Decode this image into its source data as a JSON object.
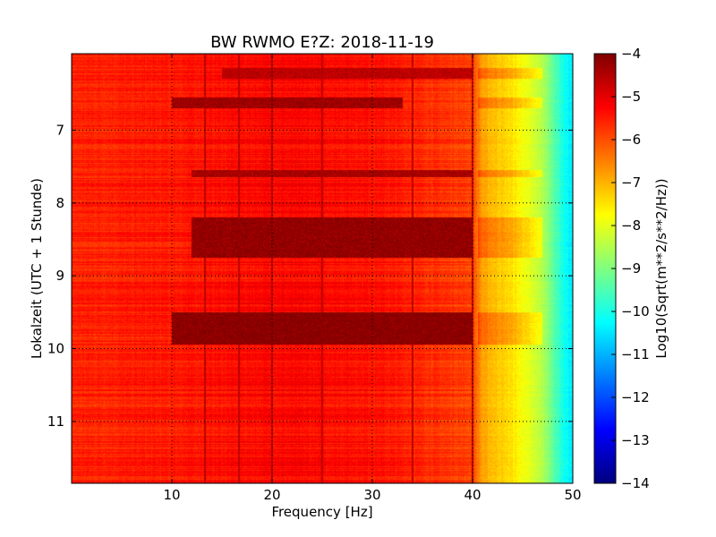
{
  "chart_data": {
    "type": "heatmap",
    "title": "BW RWMO E?Z: 2018-11-19",
    "xlabel": "Frequency [Hz]",
    "ylabel": "Lokalzeit (UTC + 1 Stunde)",
    "xlim": [
      0,
      50
    ],
    "ylim": [
      5.95,
      11.85
    ],
    "y_inverted": true,
    "x_ticks": [
      10,
      20,
      30,
      40,
      50
    ],
    "y_ticks": [
      7,
      8,
      9,
      10,
      11
    ],
    "grid": true,
    "colormap": "jet",
    "colorbar": {
      "label": "Log10(Sqrt(m**2/s**2/Hz))",
      "range": [
        -14,
        -4
      ],
      "ticks": [
        -4,
        -5,
        -6,
        -7,
        -8,
        -9,
        -10,
        -11,
        -12,
        -13,
        -14
      ]
    },
    "description_of_values": {
      "frequency_profile_hz_to_log10": [
        [
          0,
          -5.6
        ],
        [
          10,
          -5.5
        ],
        [
          20,
          -5.3
        ],
        [
          30,
          -5.4
        ],
        [
          40,
          -5.9
        ],
        [
          41,
          -6.9
        ],
        [
          44,
          -7.5
        ],
        [
          47,
          -8.5
        ],
        [
          49,
          -10.0
        ],
        [
          50,
          -10.5
        ]
      ],
      "high_energy_time_bands": [
        {
          "t_start": 6.15,
          "t_end": 6.3,
          "f_start": 15,
          "f_end": 40,
          "level": -4.6
        },
        {
          "t_start": 6.55,
          "t_end": 6.7,
          "f_start": 10,
          "f_end": 33,
          "level": -4.3
        },
        {
          "t_start": 7.55,
          "t_end": 7.65,
          "f_start": 12,
          "f_end": 40,
          "level": -4.4
        },
        {
          "t_start": 8.2,
          "t_end": 8.75,
          "f_start": 12,
          "f_end": 40,
          "level": -4.2
        },
        {
          "t_start": 9.5,
          "t_end": 9.95,
          "f_start": 10,
          "f_end": 40,
          "level": -4.1
        }
      ],
      "narrowband_lines_hz": [
        13.3,
        16.7,
        20,
        25,
        34,
        40
      ]
    }
  }
}
